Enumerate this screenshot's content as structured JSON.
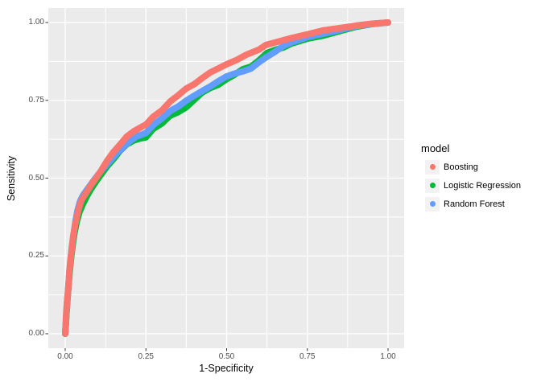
{
  "figure": {
    "background": "#ffffff",
    "panel_background": "#ebebeb",
    "grid_color": "#ffffff",
    "tick_mark_color": "#333333",
    "tick_label_color": "#4d4d4d",
    "axis_title_color": "#000000"
  },
  "axes": {
    "x": {
      "title": "1-Specificity",
      "tick_labels": [
        "0.00",
        "0.25",
        "0.50",
        "0.75",
        "1.00"
      ],
      "tick_values": [
        0,
        0.25,
        0.5,
        0.75,
        1
      ],
      "minor_values": [
        0.125,
        0.375,
        0.625,
        0.875
      ],
      "range": [
        0,
        1
      ]
    },
    "y": {
      "title": "Sensitivity",
      "tick_labels": [
        "0.00",
        "0.25",
        "0.50",
        "0.75",
        "1.00"
      ],
      "tick_values": [
        0,
        0.25,
        0.5,
        0.75,
        1
      ],
      "minor_values": [
        0.125,
        0.375,
        0.625,
        0.875
      ],
      "range": [
        0,
        1
      ]
    }
  },
  "legend": {
    "title": "model",
    "position": "right",
    "key_background": "#f2f2f2",
    "items": [
      {
        "label": "Boosting",
        "color": "#F8766D"
      },
      {
        "label": "Logistic Regression",
        "color": "#00BA38"
      },
      {
        "label": "Random Forest",
        "color": "#619CFF"
      }
    ]
  },
  "chart_data": {
    "type": "line",
    "title": "",
    "xlabel": "1-Specificity",
    "ylabel": "Sensitivity",
    "xlim": [
      0,
      1
    ],
    "ylim": [
      0,
      1
    ],
    "grid": true,
    "legend_position": "right",
    "curve_stroke_width": 8,
    "draw_order": [
      "Logistic Regression",
      "Random Forest",
      "Boosting"
    ],
    "series": [
      {
        "name": "Boosting",
        "color": "#F8766D",
        "points": [
          [
            0,
            0
          ],
          [
            0.002,
            0.04
          ],
          [
            0.004,
            0.08
          ],
          [
            0.006,
            0.105
          ],
          [
            0.008,
            0.125
          ],
          [
            0.01,
            0.155
          ],
          [
            0.013,
            0.2
          ],
          [
            0.016,
            0.23
          ],
          [
            0.018,
            0.25
          ],
          [
            0.021,
            0.28
          ],
          [
            0.025,
            0.315
          ],
          [
            0.03,
            0.345
          ],
          [
            0.036,
            0.375
          ],
          [
            0.043,
            0.405
          ],
          [
            0.05,
            0.428
          ],
          [
            0.058,
            0.442
          ],
          [
            0.068,
            0.458
          ],
          [
            0.08,
            0.478
          ],
          [
            0.0955,
            0.5
          ],
          [
            0.11,
            0.522
          ],
          [
            0.13,
            0.556
          ],
          [
            0.148,
            0.582
          ],
          [
            0.17,
            0.608
          ],
          [
            0.19,
            0.633
          ],
          [
            0.212,
            0.65
          ],
          [
            0.232,
            0.662
          ],
          [
            0.25,
            0.672
          ],
          [
            0.272,
            0.697
          ],
          [
            0.3,
            0.718
          ],
          [
            0.326,
            0.747
          ],
          [
            0.35,
            0.766
          ],
          [
            0.375,
            0.788
          ],
          [
            0.4,
            0.802
          ],
          [
            0.428,
            0.824
          ],
          [
            0.45,
            0.84
          ],
          [
            0.475,
            0.853
          ],
          [
            0.5,
            0.866
          ],
          [
            0.532,
            0.88
          ],
          [
            0.56,
            0.896
          ],
          [
            0.6,
            0.913
          ],
          [
            0.622,
            0.928
          ],
          [
            0.65,
            0.936
          ],
          [
            0.7,
            0.95
          ],
          [
            0.75,
            0.962
          ],
          [
            0.8,
            0.975
          ],
          [
            0.85,
            0.982
          ],
          [
            0.9,
            0.99
          ],
          [
            0.95,
            0.996
          ],
          [
            1,
            1
          ]
        ]
      },
      {
        "name": "Logistic Regression",
        "color": "#00BA38",
        "points": [
          [
            0,
            0
          ],
          [
            0.002,
            0.03
          ],
          [
            0.004,
            0.065
          ],
          [
            0.007,
            0.11
          ],
          [
            0.009,
            0.135
          ],
          [
            0.012,
            0.175
          ],
          [
            0.015,
            0.21
          ],
          [
            0.019,
            0.25
          ],
          [
            0.024,
            0.29
          ],
          [
            0.029,
            0.325
          ],
          [
            0.036,
            0.36
          ],
          [
            0.044,
            0.39
          ],
          [
            0.054,
            0.415
          ],
          [
            0.066,
            0.44
          ],
          [
            0.08,
            0.465
          ],
          [
            0.096,
            0.49
          ],
          [
            0.112,
            0.513
          ],
          [
            0.13,
            0.538
          ],
          [
            0.15,
            0.562
          ],
          [
            0.17,
            0.588
          ],
          [
            0.19,
            0.608
          ],
          [
            0.21,
            0.62
          ],
          [
            0.23,
            0.627
          ],
          [
            0.25,
            0.631
          ],
          [
            0.272,
            0.658
          ],
          [
            0.3,
            0.676
          ],
          [
            0.324,
            0.7
          ],
          [
            0.35,
            0.712
          ],
          [
            0.375,
            0.728
          ],
          [
            0.4,
            0.752
          ],
          [
            0.424,
            0.775
          ],
          [
            0.45,
            0.79
          ],
          [
            0.474,
            0.8
          ],
          [
            0.5,
            0.818
          ],
          [
            0.524,
            0.832
          ],
          [
            0.55,
            0.85
          ],
          [
            0.575,
            0.858
          ],
          [
            0.6,
            0.878
          ],
          [
            0.625,
            0.902
          ],
          [
            0.65,
            0.912
          ],
          [
            0.676,
            0.92
          ],
          [
            0.7,
            0.932
          ],
          [
            0.75,
            0.948
          ],
          [
            0.8,
            0.958
          ],
          [
            0.85,
            0.972
          ],
          [
            0.9,
            0.986
          ],
          [
            0.95,
            0.995
          ],
          [
            1,
            1
          ]
        ]
      },
      {
        "name": "Random Forest",
        "color": "#619CFF",
        "points": [
          [
            0,
            0
          ],
          [
            0.002,
            0.035
          ],
          [
            0.004,
            0.07
          ],
          [
            0.006,
            0.105
          ],
          [
            0.008,
            0.128
          ],
          [
            0.011,
            0.17
          ],
          [
            0.014,
            0.212
          ],
          [
            0.017,
            0.245
          ],
          [
            0.021,
            0.28
          ],
          [
            0.026,
            0.318
          ],
          [
            0.032,
            0.362
          ],
          [
            0.038,
            0.395
          ],
          [
            0.046,
            0.425
          ],
          [
            0.054,
            0.443
          ],
          [
            0.064,
            0.458
          ],
          [
            0.076,
            0.475
          ],
          [
            0.09,
            0.495
          ],
          [
            0.105,
            0.515
          ],
          [
            0.122,
            0.536
          ],
          [
            0.14,
            0.556
          ],
          [
            0.158,
            0.578
          ],
          [
            0.178,
            0.598
          ],
          [
            0.198,
            0.617
          ],
          [
            0.222,
            0.634
          ],
          [
            0.25,
            0.645
          ],
          [
            0.274,
            0.672
          ],
          [
            0.3,
            0.692
          ],
          [
            0.326,
            0.716
          ],
          [
            0.35,
            0.73
          ],
          [
            0.375,
            0.749
          ],
          [
            0.4,
            0.765
          ],
          [
            0.425,
            0.78
          ],
          [
            0.45,
            0.795
          ],
          [
            0.475,
            0.812
          ],
          [
            0.5,
            0.827
          ],
          [
            0.525,
            0.836
          ],
          [
            0.55,
            0.843
          ],
          [
            0.575,
            0.852
          ],
          [
            0.6,
            0.872
          ],
          [
            0.625,
            0.89
          ],
          [
            0.65,
            0.906
          ],
          [
            0.675,
            0.924
          ],
          [
            0.7,
            0.936
          ],
          [
            0.75,
            0.953
          ],
          [
            0.8,
            0.964
          ],
          [
            0.85,
            0.976
          ],
          [
            0.9,
            0.988
          ],
          [
            0.95,
            0.995
          ],
          [
            1,
            1
          ]
        ]
      }
    ]
  }
}
